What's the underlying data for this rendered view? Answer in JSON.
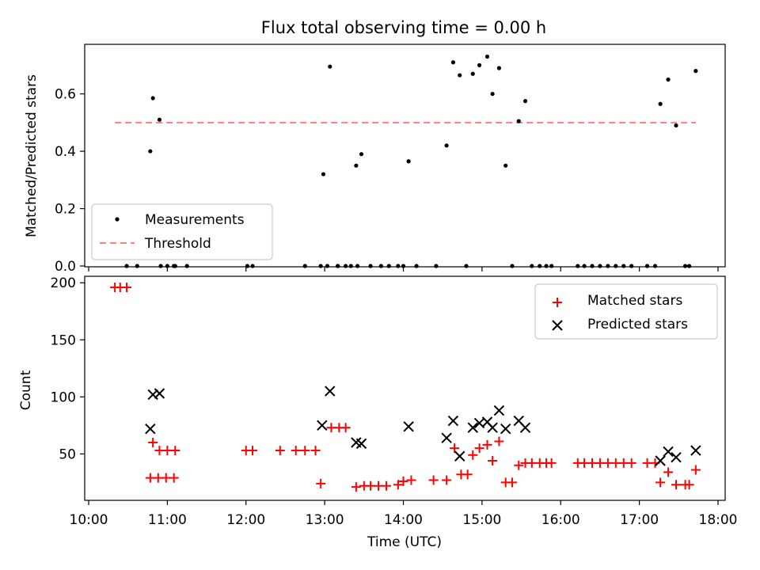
{
  "chart_data": [
    {
      "type": "scatter",
      "title": "Flux total observing time = 0.00 h",
      "xlabel": "",
      "ylabel": "Matched/Predicted stars",
      "xlim": [
        "10:00",
        "18:00"
      ],
      "ylim": [
        0,
        0.77
      ],
      "yticks": [
        0.0,
        0.2,
        0.4,
        0.6
      ],
      "ytick_labels": [
        "0.0",
        "0.2",
        "0.4",
        "0.6"
      ],
      "grid": false,
      "legend_position": "lower-left",
      "series": [
        {
          "name": "Measurements",
          "kind": "scatter",
          "color": "#000000",
          "points": [
            [
              "10:29",
              0
            ],
            [
              "10:37",
              0
            ],
            [
              "10:47",
              0.4
            ],
            [
              "10:55",
              0
            ],
            [
              "11:00",
              0
            ],
            [
              "11:05",
              0
            ],
            [
              "10:49",
              0.585
            ],
            [
              "10:54",
              0.51
            ],
            [
              "11:06",
              0
            ],
            [
              "11:15",
              0
            ],
            [
              "12:01",
              0
            ],
            [
              "12:05",
              0
            ],
            [
              "12:45",
              0
            ],
            [
              "12:57",
              0
            ],
            [
              "13:02",
              0
            ],
            [
              "13:10",
              0
            ],
            [
              "13:16",
              0
            ],
            [
              "12:59",
              0.32
            ],
            [
              "13:04",
              0.695
            ],
            [
              "13:10",
              0
            ],
            [
              "13:20",
              0
            ],
            [
              "13:25",
              0
            ],
            [
              "13:24",
              0.35
            ],
            [
              "13:28",
              0.39
            ],
            [
              "13:35",
              0
            ],
            [
              "13:43",
              0
            ],
            [
              "13:49",
              0
            ],
            [
              "13:56",
              0
            ],
            [
              "14:00",
              0
            ],
            [
              "14:04",
              0.365
            ],
            [
              "14:10",
              0
            ],
            [
              "14:25",
              0
            ],
            [
              "14:33",
              0.42
            ],
            [
              "14:48",
              0
            ],
            [
              "14:38",
              0.71
            ],
            [
              "14:43",
              0.665
            ],
            [
              "14:53",
              0.67
            ],
            [
              "14:58",
              0.7
            ],
            [
              "15:04",
              0.73
            ],
            [
              "15:08",
              0.6
            ],
            [
              "15:13",
              0.69
            ],
            [
              "15:18",
              0.35
            ],
            [
              "15:23",
              0
            ],
            [
              "15:28",
              0.505
            ],
            [
              "15:33",
              0.575
            ],
            [
              "15:38",
              0
            ],
            [
              "15:44",
              0
            ],
            [
              "15:49",
              0
            ],
            [
              "15:53",
              0
            ],
            [
              "16:13",
              0
            ],
            [
              "16:18",
              0
            ],
            [
              "16:24",
              0
            ],
            [
              "16:30",
              0
            ],
            [
              "16:36",
              0
            ],
            [
              "16:42",
              0
            ],
            [
              "16:48",
              0
            ],
            [
              "16:54",
              0
            ],
            [
              "17:06",
              0
            ],
            [
              "17:12",
              0
            ],
            [
              "17:16",
              0.565
            ],
            [
              "17:22",
              0.65
            ],
            [
              "17:28",
              0.49
            ],
            [
              "17:35",
              0
            ],
            [
              "17:38",
              0
            ],
            [
              "17:43",
              0.68
            ]
          ]
        },
        {
          "name": "Threshold",
          "kind": "dashed-line",
          "color": "#ff7f7f",
          "x": [
            "10:20",
            "17:43"
          ],
          "y": [
            0.5,
            0.5
          ]
        }
      ]
    },
    {
      "type": "scatter",
      "title": "",
      "xlabel": "Time (UTC)",
      "ylabel": "Count",
      "xlim": [
        "10:00",
        "18:00"
      ],
      "xticks": [
        "10:00",
        "11:00",
        "12:00",
        "13:00",
        "14:00",
        "15:00",
        "16:00",
        "17:00",
        "18:00"
      ],
      "ylim": [
        10,
        205
      ],
      "yticks": [
        50,
        100,
        150,
        200
      ],
      "grid": false,
      "legend_position": "upper-right",
      "series": [
        {
          "name": "Matched stars",
          "marker": "+",
          "color": "#ff0000",
          "points": [
            [
              "10:20",
              196
            ],
            [
              "10:24",
              196
            ],
            [
              "10:29",
              196
            ],
            [
              "10:47",
              29
            ],
            [
              "10:53",
              29
            ],
            [
              "10:59",
              29
            ],
            [
              "11:05",
              29
            ],
            [
              "10:49",
              60
            ],
            [
              "10:54",
              53
            ],
            [
              "11:00",
              53
            ],
            [
              "11:06",
              53
            ],
            [
              "12:00",
              53
            ],
            [
              "12:05",
              53
            ],
            [
              "12:26",
              53
            ],
            [
              "12:38",
              53
            ],
            [
              "12:45",
              53
            ],
            [
              "12:53",
              53
            ],
            [
              "12:57",
              24
            ],
            [
              "13:05",
              73
            ],
            [
              "13:11",
              73
            ],
            [
              "13:16",
              73
            ],
            [
              "13:24",
              21
            ],
            [
              "13:30",
              22
            ],
            [
              "13:35",
              22
            ],
            [
              "13:41",
              22
            ],
            [
              "13:47",
              22
            ],
            [
              "13:56",
              23
            ],
            [
              "14:00",
              26
            ],
            [
              "14:06",
              27
            ],
            [
              "14:23",
              27
            ],
            [
              "14:33",
              27
            ],
            [
              "14:39",
              55
            ],
            [
              "14:44",
              32
            ],
            [
              "14:49",
              32
            ],
            [
              "14:53",
              49
            ],
            [
              "14:58",
              55
            ],
            [
              "15:04",
              58
            ],
            [
              "15:08",
              44
            ],
            [
              "15:13",
              61
            ],
            [
              "15:18",
              25
            ],
            [
              "15:23",
              25
            ],
            [
              "15:28",
              40
            ],
            [
              "15:33",
              42
            ],
            [
              "15:38",
              42
            ],
            [
              "15:44",
              42
            ],
            [
              "15:49",
              42
            ],
            [
              "15:53",
              42
            ],
            [
              "16:13",
              42
            ],
            [
              "16:18",
              42
            ],
            [
              "16:24",
              42
            ],
            [
              "16:30",
              42
            ],
            [
              "16:36",
              42
            ],
            [
              "16:42",
              42
            ],
            [
              "16:48",
              42
            ],
            [
              "16:54",
              42
            ],
            [
              "17:06",
              42
            ],
            [
              "17:12",
              42
            ],
            [
              "17:16",
              25
            ],
            [
              "17:22",
              34
            ],
            [
              "17:28",
              23
            ],
            [
              "17:35",
              23
            ],
            [
              "17:38",
              23
            ],
            [
              "17:43",
              36
            ]
          ]
        },
        {
          "name": "Predicted stars",
          "marker": "x",
          "color": "#000000",
          "points": [
            [
              "10:47",
              72
            ],
            [
              "10:49",
              102
            ],
            [
              "10:54",
              103
            ],
            [
              "12:58",
              75
            ],
            [
              "13:04",
              105
            ],
            [
              "13:24",
              60
            ],
            [
              "13:28",
              59
            ],
            [
              "14:04",
              74
            ],
            [
              "14:33",
              64
            ],
            [
              "14:38",
              79
            ],
            [
              "14:43",
              48
            ],
            [
              "14:53",
              73
            ],
            [
              "14:58",
              77
            ],
            [
              "15:04",
              78
            ],
            [
              "15:08",
              73
            ],
            [
              "15:13",
              88
            ],
            [
              "15:18",
              72
            ],
            [
              "15:28",
              79
            ],
            [
              "15:33",
              73
            ],
            [
              "17:16",
              44
            ],
            [
              "17:22",
              52
            ],
            [
              "17:28",
              47
            ],
            [
              "17:43",
              53
            ]
          ]
        }
      ]
    }
  ]
}
